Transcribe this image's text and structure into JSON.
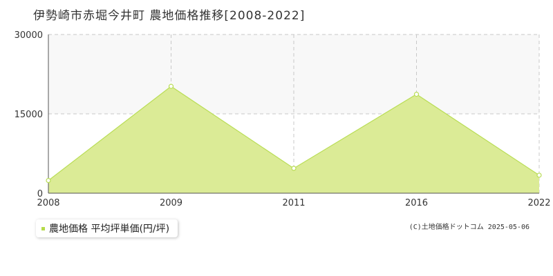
{
  "colors": {
    "fill": "#dbeb96",
    "line": "#b9dd55",
    "marker_fill": "#ffffff",
    "band": "#f8f8f8",
    "grid": "#c8c8c8",
    "legend_marker": "#b6db4a"
  },
  "chart_data": {
    "type": "area",
    "title": "伊勢崎市赤堀今井町 農地価格推移[2008-2022]",
    "x": [
      "2008",
      "2009",
      "2011",
      "2016",
      "2022"
    ],
    "series": [
      {
        "name": "農地価格 平均坪単価(円/坪)",
        "values": [
          2400,
          20200,
          4700,
          18700,
          3400
        ]
      }
    ],
    "ylim": [
      0,
      30000
    ],
    "yticks": [
      "0",
      "15000",
      "30000"
    ],
    "grid": true,
    "legend_position": "bottom-left"
  },
  "footer": {
    "copyright": "(C)土地価格ドットコム 2025-05-06"
  }
}
